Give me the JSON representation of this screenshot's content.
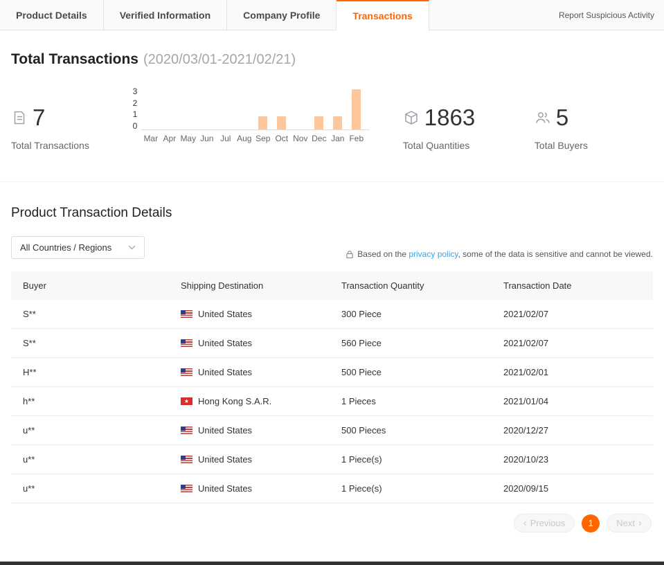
{
  "colors": {
    "accent": "#ff6600",
    "bar": "#fcc79c",
    "link": "#3aa1e8"
  },
  "icons": {
    "chevron_left": "‹",
    "chevron_right": "›"
  },
  "tabs": {
    "items": [
      {
        "label": "Product Details",
        "active": false
      },
      {
        "label": "Verified Information",
        "active": false
      },
      {
        "label": "Company Profile",
        "active": false
      },
      {
        "label": "Transactions",
        "active": true
      }
    ],
    "report_link": "Report Suspicious Activity"
  },
  "summary": {
    "title": "Total Transactions",
    "date_range": "(2020/03/01-2021/02/21)",
    "stats": [
      {
        "icon": "document-icon",
        "value": "7",
        "label": "Total Transactions"
      },
      {
        "icon": "package-icon",
        "value": "1863",
        "label": "Total Quantities"
      },
      {
        "icon": "buyers-icon",
        "value": "5",
        "label": "Total Buyers"
      }
    ]
  },
  "chart_data": {
    "type": "bar",
    "categories": [
      "Mar",
      "Apr",
      "May",
      "Jun",
      "Jul",
      "Aug",
      "Sep",
      "Oct",
      "Nov",
      "Dec",
      "Jan",
      "Feb"
    ],
    "values": [
      0,
      0,
      0,
      0,
      0,
      0,
      1,
      1,
      0,
      1,
      1,
      3
    ],
    "title": "",
    "xlabel": "",
    "ylabel": "",
    "ylim": [
      0,
      3
    ],
    "yticks": [
      3,
      2,
      1,
      0
    ],
    "grid": false,
    "legend": false,
    "bar_color": "#fcc79c"
  },
  "details": {
    "title": "Product Transaction Details",
    "filter_label": "All Countries / Regions",
    "privacy_note_prefix": "Based on the ",
    "privacy_link": "privacy policy",
    "privacy_note_suffix": ", some of the data is sensitive and cannot be viewed.",
    "table": {
      "headers": [
        "Buyer",
        "Shipping Destination",
        "Transaction Quantity",
        "Transaction Date"
      ],
      "rows": [
        {
          "buyer": "S**",
          "flag": "us",
          "destination": "United States",
          "quantity": "300 Piece",
          "date": "2021/02/07"
        },
        {
          "buyer": "S**",
          "flag": "us",
          "destination": "United States",
          "quantity": "560 Piece",
          "date": "2021/02/07"
        },
        {
          "buyer": "H**",
          "flag": "us",
          "destination": "United States",
          "quantity": "500 Piece",
          "date": "2021/02/01"
        },
        {
          "buyer": "h**",
          "flag": "hk",
          "destination": "Hong Kong S.A.R.",
          "quantity": "1 Pieces",
          "date": "2021/01/04"
        },
        {
          "buyer": "u**",
          "flag": "us",
          "destination": "United States",
          "quantity": "500 Pieces",
          "date": "2020/12/27"
        },
        {
          "buyer": "u**",
          "flag": "us",
          "destination": "United States",
          "quantity": "1 Piece(s)",
          "date": "2020/10/23"
        },
        {
          "buyer": "u**",
          "flag": "us",
          "destination": "United States",
          "quantity": "1 Piece(s)",
          "date": "2020/09/15"
        }
      ]
    },
    "pagination": {
      "previous_label": "Previous",
      "current_page": "1",
      "next_label": "Next"
    }
  }
}
